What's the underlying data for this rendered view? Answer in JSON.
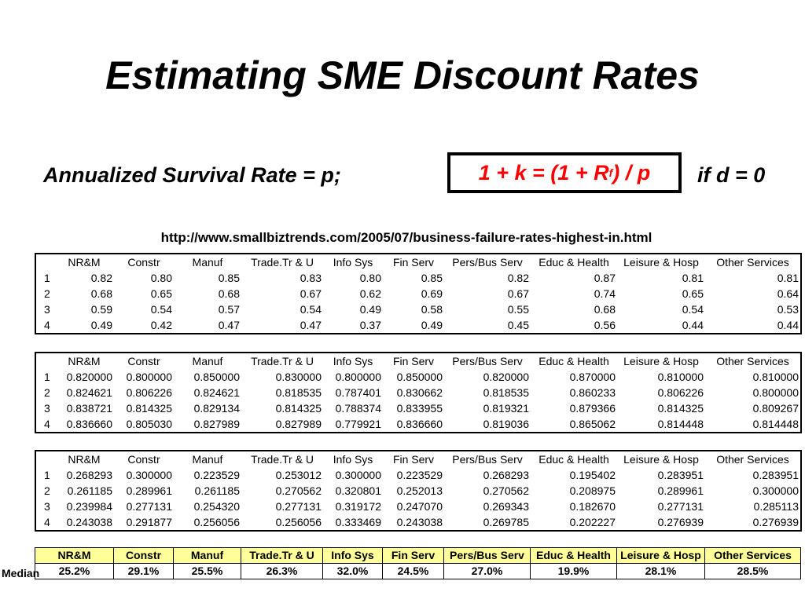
{
  "title": "Estimating SME Discount Rates",
  "formula": {
    "left": "Annualized Survival Rate = p;",
    "box_pre": "1 + k = (1 + R ",
    "box_sub": "f",
    "box_post": ") / p",
    "right": "if d = 0",
    "box_color": "#ff0000"
  },
  "source_url": "http://www.smallbiztrends.com/2005/07/business-failure-rates-highest-in.html",
  "headers": [
    "",
    "NR&M",
    "Constr",
    "Manuf",
    "Trade.Tr & U",
    "Info Sys",
    "Fin Serv",
    "Pers/Bus Serv",
    "Educ & Health",
    "Leisure & Hosp",
    "Other Services"
  ],
  "tables": [
    {
      "rows": [
        [
          "1",
          "0.82",
          "0.80",
          "0.85",
          "0.83",
          "0.80",
          "0.85",
          "0.82",
          "0.87",
          "0.81",
          "0.81"
        ],
        [
          "2",
          "0.68",
          "0.65",
          "0.68",
          "0.67",
          "0.62",
          "0.69",
          "0.67",
          "0.74",
          "0.65",
          "0.64"
        ],
        [
          "3",
          "0.59",
          "0.54",
          "0.57",
          "0.54",
          "0.49",
          "0.58",
          "0.55",
          "0.68",
          "0.54",
          "0.53"
        ],
        [
          "4",
          "0.49",
          "0.42",
          "0.47",
          "0.47",
          "0.37",
          "0.49",
          "0.45",
          "0.56",
          "0.44",
          "0.44"
        ]
      ]
    },
    {
      "rows": [
        [
          "1",
          "0.820000",
          "0.800000",
          "0.850000",
          "0.830000",
          "0.800000",
          "0.850000",
          "0.820000",
          "0.870000",
          "0.810000",
          "0.810000"
        ],
        [
          "2",
          "0.824621",
          "0.806226",
          "0.824621",
          "0.818535",
          "0.787401",
          "0.830662",
          "0.818535",
          "0.860233",
          "0.806226",
          "0.800000"
        ],
        [
          "3",
          "0.838721",
          "0.814325",
          "0.829134",
          "0.814325",
          "0.788374",
          "0.833955",
          "0.819321",
          "0.879366",
          "0.814325",
          "0.809267"
        ],
        [
          "4",
          "0.836660",
          "0.805030",
          "0.827989",
          "0.827989",
          "0.779921",
          "0.836660",
          "0.819036",
          "0.865062",
          "0.814448",
          "0.814448"
        ]
      ]
    },
    {
      "rows": [
        [
          "1",
          "0.268293",
          "0.300000",
          "0.223529",
          "0.253012",
          "0.300000",
          "0.223529",
          "0.268293",
          "0.195402",
          "0.283951",
          "0.283951"
        ],
        [
          "2",
          "0.261185",
          "0.289961",
          "0.261185",
          "0.270562",
          "0.320801",
          "0.252013",
          "0.270562",
          "0.208975",
          "0.289961",
          "0.300000"
        ],
        [
          "3",
          "0.239984",
          "0.277131",
          "0.254320",
          "0.277131",
          "0.319172",
          "0.247070",
          "0.269343",
          "0.182670",
          "0.277131",
          "0.285113"
        ],
        [
          "4",
          "0.243038",
          "0.291877",
          "0.256056",
          "0.256056",
          "0.333469",
          "0.243038",
          "0.269785",
          "0.202227",
          "0.276939",
          "0.276939"
        ]
      ]
    }
  ],
  "median": {
    "label": "Median",
    "headers": [
      "NR&M",
      "Constr",
      "Manuf",
      "Trade.Tr & U",
      "Info Sys",
      "Fin Serv",
      "Pers/Bus Serv",
      "Educ & Health",
      "Leisure & Hosp",
      "Other Services"
    ],
    "values": [
      "25.2%",
      "29.1%",
      "25.5%",
      "26.3%",
      "32.0%",
      "24.5%",
      "27.0%",
      "19.9%",
      "28.1%",
      "28.5%"
    ],
    "header_color": "#ffff99"
  }
}
